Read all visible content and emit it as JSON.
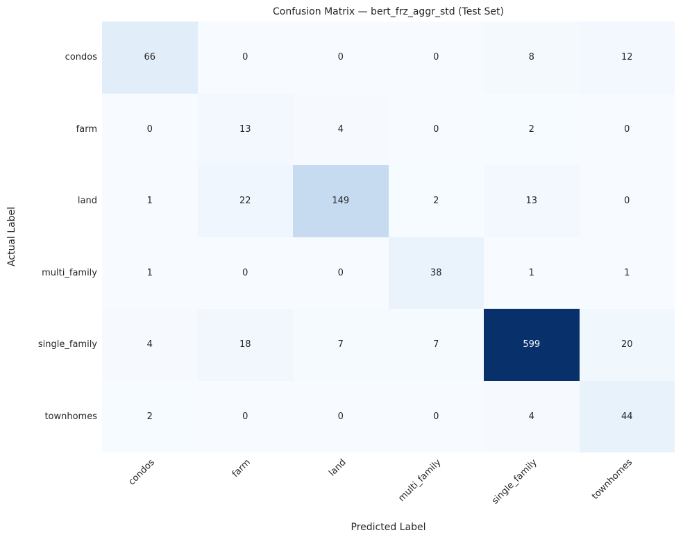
{
  "chart_data": {
    "type": "heatmap",
    "title": "Confusion Matrix — bert_frz_aggr_std (Test Set)",
    "xlabel": "Predicted Label",
    "ylabel": "Actual Label",
    "categories": [
      "condos",
      "farm",
      "land",
      "multi_family",
      "single_family",
      "townhomes"
    ],
    "series": [
      {
        "name": "condos",
        "values": [
          66,
          0,
          0,
          0,
          8,
          12
        ]
      },
      {
        "name": "farm",
        "values": [
          0,
          13,
          4,
          0,
          2,
          0
        ]
      },
      {
        "name": "land",
        "values": [
          1,
          22,
          149,
          2,
          13,
          0
        ]
      },
      {
        "name": "multi_family",
        "values": [
          1,
          0,
          0,
          38,
          1,
          1
        ]
      },
      {
        "name": "single_family",
        "values": [
          4,
          18,
          7,
          7,
          599,
          20
        ]
      },
      {
        "name": "townhomes",
        "values": [
          2,
          0,
          0,
          0,
          4,
          44
        ]
      }
    ],
    "vmin": 0,
    "vmax": 599,
    "grid": false,
    "legend_position": "none",
    "colormap": {
      "name": "Blues",
      "stops": [
        "#f7fbff",
        "#deebf7",
        "#c6dbef",
        "#9ecae1",
        "#6baed6",
        "#4292c6",
        "#2171b5",
        "#08519c",
        "#08306b"
      ]
    },
    "annotation_color_dark": "#262626",
    "annotation_color_light": "#ffffff"
  }
}
